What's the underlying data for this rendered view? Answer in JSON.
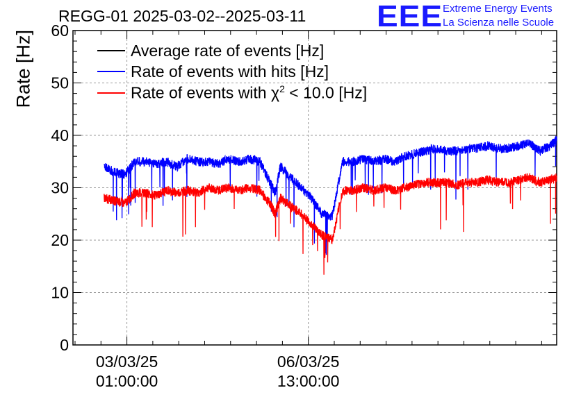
{
  "chart_data": {
    "type": "line",
    "title": "REGG-01 2025-03-02--2025-03-11",
    "xlabel": "",
    "ylabel": "Rate [Hz]",
    "ylim": [
      0,
      60
    ],
    "yticks": [
      0,
      10,
      20,
      30,
      40,
      50,
      60
    ],
    "x_unit": "days since 2025-03-02 00:00",
    "xlim": [
      0.0,
      9.33
    ],
    "xtick_labels": [
      {
        "x": 1.04,
        "date": "03/03/25",
        "time": "01:00:00"
      },
      {
        "x": 4.54,
        "date": "06/03/25",
        "time": "13:00:00"
      }
    ],
    "grid": true,
    "legend_position": "top-left",
    "series": [
      {
        "name": "Average rate of events [Hz]",
        "color": "#000000",
        "x": [],
        "values": []
      },
      {
        "name": "Rate of events with hits [Hz]",
        "color": "#0000ff",
        "x": [
          0.6,
          0.8,
          1.0,
          1.2,
          1.4,
          1.6,
          1.8,
          2.0,
          2.2,
          2.4,
          2.6,
          2.8,
          3.0,
          3.2,
          3.4,
          3.6,
          3.8,
          3.9,
          4.0,
          4.2,
          4.4,
          4.6,
          4.8,
          5.0,
          5.2,
          5.4,
          5.6,
          5.8,
          6.0,
          6.2,
          6.4,
          6.6,
          6.8,
          7.0,
          7.2,
          7.4,
          7.6,
          7.8,
          8.0,
          8.2,
          8.4,
          8.6,
          8.8,
          9.0,
          9.2,
          9.33
        ],
        "values": [
          34,
          33,
          32.5,
          35,
          35,
          34.5,
          35,
          34,
          35.5,
          35,
          35,
          34.5,
          35.5,
          35,
          35.5,
          35,
          31,
          29,
          34,
          32,
          30,
          28,
          25,
          24.5,
          35,
          35,
          35.5,
          35,
          35.5,
          35,
          36,
          36.5,
          37,
          37.5,
          37,
          37,
          37.5,
          37.5,
          38,
          37.5,
          37.5,
          38,
          38.5,
          37,
          38,
          39
        ]
      },
      {
        "name": "Rate of events with χ² < 10.0 [Hz]",
        "color": "#ff0000",
        "x": [
          0.6,
          0.8,
          1.0,
          1.2,
          1.4,
          1.6,
          1.8,
          2.0,
          2.2,
          2.4,
          2.6,
          2.8,
          3.0,
          3.2,
          3.4,
          3.6,
          3.8,
          3.9,
          4.0,
          4.2,
          4.4,
          4.6,
          4.8,
          5.0,
          5.2,
          5.4,
          5.6,
          5.8,
          6.0,
          6.2,
          6.4,
          6.6,
          6.8,
          7.0,
          7.2,
          7.4,
          7.6,
          7.8,
          8.0,
          8.2,
          8.4,
          8.6,
          8.8,
          9.0,
          9.2,
          9.33
        ],
        "values": [
          28,
          27.5,
          27,
          29,
          29,
          28.5,
          29.5,
          29,
          29.5,
          29,
          30,
          29.5,
          30,
          29.5,
          30,
          29.5,
          27,
          25,
          28,
          26.5,
          25,
          23,
          21,
          20,
          29.5,
          29.5,
          30,
          29.5,
          30,
          29.5,
          30,
          30.5,
          31,
          31,
          31,
          30.5,
          31,
          31,
          31.5,
          31,
          31,
          31.5,
          32,
          31,
          31.5,
          32
        ]
      }
    ]
  },
  "logo": {
    "mark": "EEE",
    "line1": "Extreme Energy Events",
    "line2": "La Scienza nelle Scuole"
  },
  "legend": {
    "item1": "Average rate of events [Hz]",
    "item2": "Rate of events with hits [Hz]",
    "item3_pre": "Rate of events with χ",
    "item3_sup": "2",
    "item3_post": " < 10.0 [Hz]"
  }
}
